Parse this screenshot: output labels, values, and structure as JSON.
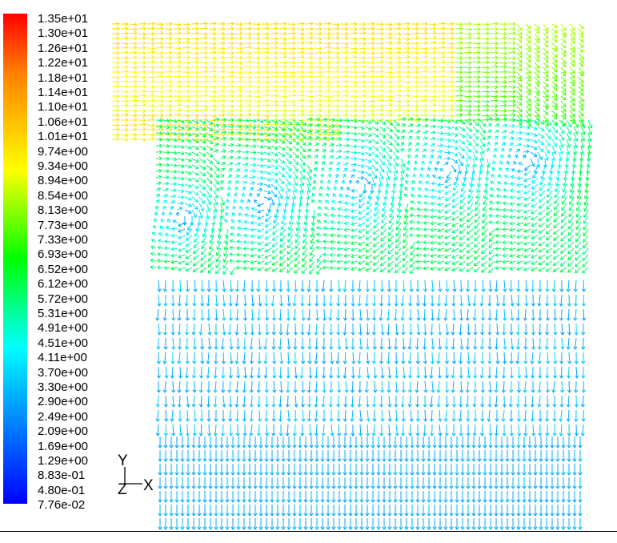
{
  "colorbar": {
    "labels": [
      "1.35e+01",
      "1.30e+01",
      "1.26e+01",
      "1.22e+01",
      "1.18e+01",
      "1.14e+01",
      "1.10e+01",
      "1.06e+01",
      "1.01e+01",
      "9.74e+00",
      "9.34e+00",
      "8.94e+00",
      "8.54e+00",
      "8.13e+00",
      "7.73e+00",
      "7.33e+00",
      "6.93e+00",
      "6.52e+00",
      "6.12e+00",
      "5.72e+00",
      "5.31e+00",
      "4.91e+00",
      "4.51e+00",
      "4.11e+00",
      "3.70e+00",
      "3.30e+00",
      "2.90e+00",
      "2.49e+00",
      "2.09e+00",
      "1.69e+00",
      "1.29e+00",
      "8.83e-01",
      "4.80e-01",
      "7.76e-02"
    ],
    "min": 0.0776,
    "max": 13.5,
    "gradient_colors": [
      "#ff0000",
      "#ff7f00",
      "#ffff00",
      "#00ff00",
      "#00ffff",
      "#0080ff",
      "#0000ff"
    ]
  },
  "axes_triad": {
    "y_label": "Y",
    "x_label": "X",
    "z_label": "Z"
  },
  "colors": {
    "axis_lines": "#000000",
    "background": "#ffffff"
  }
}
